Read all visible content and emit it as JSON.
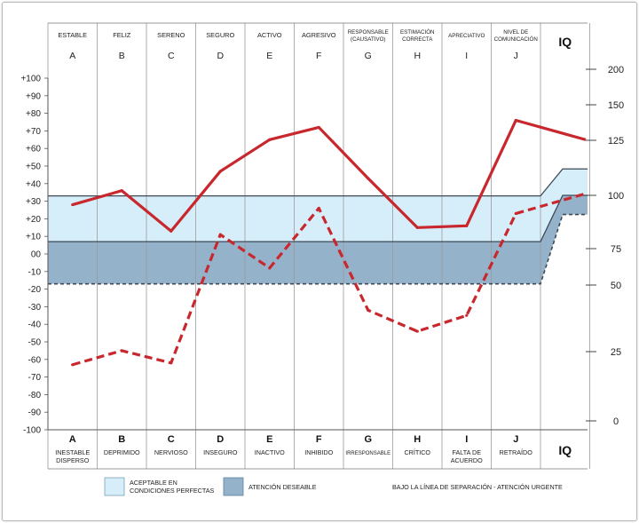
{
  "chart_data": {
    "type": "line",
    "categories": [
      "A",
      "B",
      "C",
      "D",
      "E",
      "F",
      "G",
      "H",
      "I",
      "J"
    ],
    "top_labels": [
      [
        "ESTABLE"
      ],
      [
        "FELIZ"
      ],
      [
        "SERENO"
      ],
      [
        "SEGURO"
      ],
      [
        "ACTIVO"
      ],
      [
        "AGRESIVO"
      ],
      [
        "RESPONSABLE",
        "(CAUSATIVO)"
      ],
      [
        "ESTIMACIÓN",
        "CORRECTA"
      ],
      [
        "APRECIATIVO"
      ],
      [
        "NIVEL DE",
        "COMUNICACIÓN"
      ]
    ],
    "bottom_labels": [
      [
        "INESTABLE",
        "DISPERSO"
      ],
      [
        "DEPRIMIDO"
      ],
      [
        "NERVIOSO"
      ],
      [
        "INSEGURO"
      ],
      [
        "INACTIVO"
      ],
      [
        "INHIBIDO"
      ],
      [
        "IRRESPONSABLE"
      ],
      [
        "CRÍTICO"
      ],
      [
        "FALTA DE",
        "ACUERDO"
      ],
      [
        "RETRAÍDO"
      ]
    ],
    "iq_label": "IQ",
    "y_left_ticks": [
      "+100",
      "+90",
      "+80",
      "+70",
      "+60",
      "+50",
      "+40",
      "+30",
      "+20",
      "+10",
      "00",
      "-10",
      "-20",
      "-30",
      "-40",
      "-50",
      "-60",
      "-70",
      "-80",
      "-90",
      "-100"
    ],
    "y_right_ticks": [
      {
        "label": "200",
        "value": 200
      },
      {
        "label": "150",
        "value": 150
      },
      {
        "label": "125",
        "value": 125
      },
      {
        "label": "100",
        "value": 100
      },
      {
        "label": "75",
        "value": 75
      },
      {
        "label": "50",
        "value": 50
      },
      {
        "label": "25",
        "value": 25
      },
      {
        "label": "0",
        "value": 0
      }
    ],
    "ylim": [
      -100,
      100
    ],
    "bands": {
      "acceptable_top": 33,
      "desirable_top": 7,
      "urgent_line": -17,
      "iq_acceptable_top": 50,
      "iq_desirable_top": 33,
      "iq_urgent_line": 22
    },
    "series": [
      {
        "values": [
          28,
          36,
          13,
          47,
          65,
          72,
          43,
          15,
          16,
          76
        ],
        "iq_value": 66,
        "style": "solid",
        "color": "#c8282d"
      },
      {
        "values": [
          -63,
          -55,
          -62,
          11,
          -8,
          26,
          -32,
          -44,
          -35,
          23
        ],
        "iq_value": 36,
        "style": "dashed",
        "color": "#c8282d"
      }
    ],
    "colors": {
      "acceptable": "#d6eef9",
      "desirable": "#95b2cb",
      "boundary": "#3c4a57"
    },
    "legend": {
      "acceptable": [
        "ACEPTABLE EN",
        "CONDICIONES PERFECTAS"
      ],
      "desirable": "ATENCIÓN DESEABLE",
      "urgent": "BAJO LA LÍNEA DE SEPARACIÓN - ATENCIÓN URGENTE"
    }
  }
}
